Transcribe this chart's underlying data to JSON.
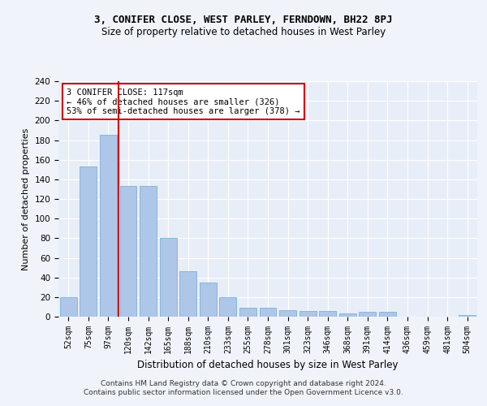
{
  "title": "3, CONIFER CLOSE, WEST PARLEY, FERNDOWN, BH22 8PJ",
  "subtitle": "Size of property relative to detached houses in West Parley",
  "xlabel": "Distribution of detached houses by size in West Parley",
  "ylabel": "Number of detached properties",
  "categories": [
    "52sqm",
    "75sqm",
    "97sqm",
    "120sqm",
    "142sqm",
    "165sqm",
    "188sqm",
    "210sqm",
    "233sqm",
    "255sqm",
    "278sqm",
    "301sqm",
    "323sqm",
    "346sqm",
    "368sqm",
    "391sqm",
    "414sqm",
    "436sqm",
    "459sqm",
    "481sqm",
    "504sqm"
  ],
  "values": [
    20,
    153,
    185,
    133,
    133,
    80,
    46,
    35,
    20,
    9,
    9,
    7,
    6,
    6,
    3,
    5,
    5,
    0,
    0,
    0,
    2
  ],
  "bar_color": "#aec6e8",
  "bar_edge_color": "#6aaad4",
  "background_color": "#e8eef8",
  "grid_color": "#ffffff",
  "property_line_color": "#cc0000",
  "annotation_text": "3 CONIFER CLOSE: 117sqm\n← 46% of detached houses are smaller (326)\n53% of semi-detached houses are larger (378) →",
  "annotation_box_color": "#ffffff",
  "annotation_box_edge": "#cc0000",
  "ylim": [
    0,
    240
  ],
  "yticks": [
    0,
    20,
    40,
    60,
    80,
    100,
    120,
    140,
    160,
    180,
    200,
    220,
    240
  ],
  "footer_line1": "Contains HM Land Registry data © Crown copyright and database right 2024.",
  "footer_line2": "Contains public sector information licensed under the Open Government Licence v3.0."
}
